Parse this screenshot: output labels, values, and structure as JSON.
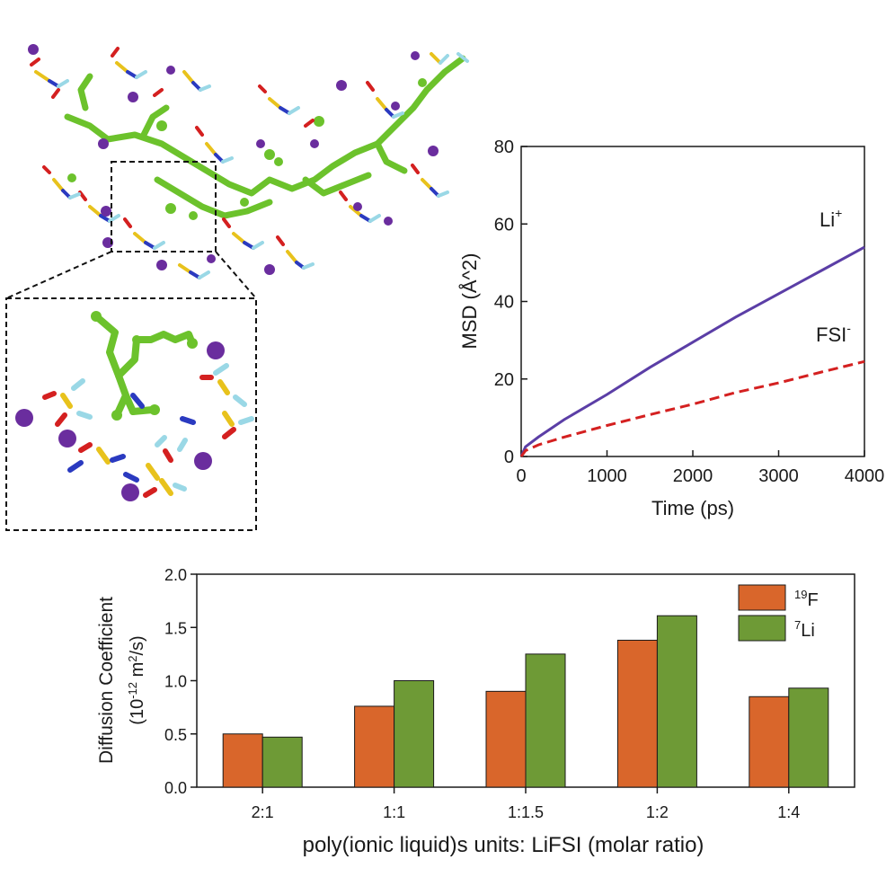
{
  "colors": {
    "li": "#5b3ea6",
    "fsi": "#d42020",
    "bar_f": "#d9662b",
    "bar_li": "#6e9a36",
    "molecule_green": "#6cc22c",
    "atom_purple": "#6a2d9e"
  },
  "chart_data": [
    {
      "type": "line",
      "title": "",
      "xlabel": "Time (ps)",
      "ylabel": "MSD (Å^2)",
      "xlim": [
        0,
        4000
      ],
      "ylim": [
        0,
        80
      ],
      "xticks": [
        "0",
        "1000",
        "2000",
        "3000",
        "4000"
      ],
      "yticks": [
        "0",
        "20",
        "40",
        "60",
        "80"
      ],
      "series": [
        {
          "name": "Li",
          "superscript": "+",
          "style": "solid",
          "x": [
            0,
            50,
            200,
            500,
            1000,
            1500,
            2000,
            2500,
            3000,
            3500,
            4000
          ],
          "y": [
            0,
            2.5,
            5,
            9.5,
            16,
            23,
            29.5,
            36,
            42,
            48,
            54
          ]
        },
        {
          "name": "FSI",
          "superscript": "-",
          "style": "dashed",
          "x": [
            0,
            50,
            200,
            500,
            1000,
            1500,
            2000,
            2500,
            3000,
            3500,
            4000
          ],
          "y": [
            0,
            1.5,
            3,
            5,
            8,
            10.8,
            13.5,
            16.5,
            19,
            21.8,
            24.5
          ]
        }
      ]
    },
    {
      "type": "bar",
      "title": "",
      "xlabel": "poly(ionic liquid)s units: LiFSI (molar ratio)",
      "ylabel_line1": "Diffusion Coefficient",
      "ylabel_line2_pre": "(10",
      "ylabel_line2_sup": "-12",
      "ylabel_line2_mid": " m",
      "ylabel_line2_sup2": "2",
      "ylabel_line2_post": "/s)",
      "ylim": [
        0,
        2.0
      ],
      "yticks": [
        "0.0",
        "0.5",
        "1.0",
        "1.5",
        "2.0"
      ],
      "categories": [
        "2:1",
        "1:1",
        "1:1.5",
        "1:2",
        "1:4"
      ],
      "series": [
        {
          "name": "F",
          "superscript": "19",
          "values": [
            0.5,
            0.76,
            0.9,
            1.38,
            0.85
          ]
        },
        {
          "name": "Li",
          "superscript": "7",
          "values": [
            0.47,
            1.0,
            1.25,
            1.61,
            0.93
          ]
        }
      ],
      "legend_position": "top-right"
    }
  ]
}
